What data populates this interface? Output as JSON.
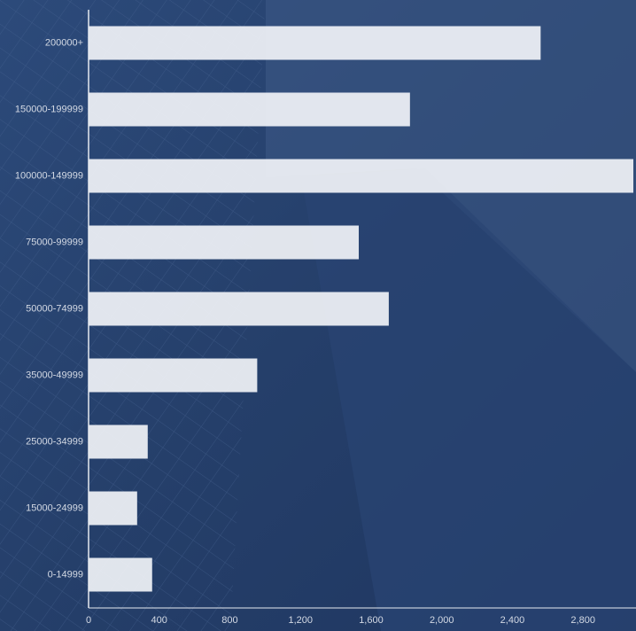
{
  "chart_data": {
    "type": "bar",
    "orientation": "horizontal",
    "categories": [
      "200000+",
      "150000-199999",
      "100000-149999",
      "75000-99999",
      "50000-74999",
      "35000-49999",
      "25000-34999",
      "15000-24999",
      "0-14999"
    ],
    "values": [
      2560,
      1820,
      3085,
      1530,
      1700,
      955,
      335,
      275,
      360
    ],
    "color": "#f1f3f7",
    "xlim": [
      0,
      3100
    ],
    "xticks": [
      0,
      400,
      800,
      {
        "value": 1200,
        "label": "1,200"
      },
      {
        "value": 1600,
        "label": "1,600"
      },
      {
        "value": 2000,
        "label": "2,000"
      },
      {
        "value": 2400,
        "label": "2,400"
      },
      {
        "value": 2800,
        "label": "2,800"
      }
    ],
    "grid": false
  }
}
